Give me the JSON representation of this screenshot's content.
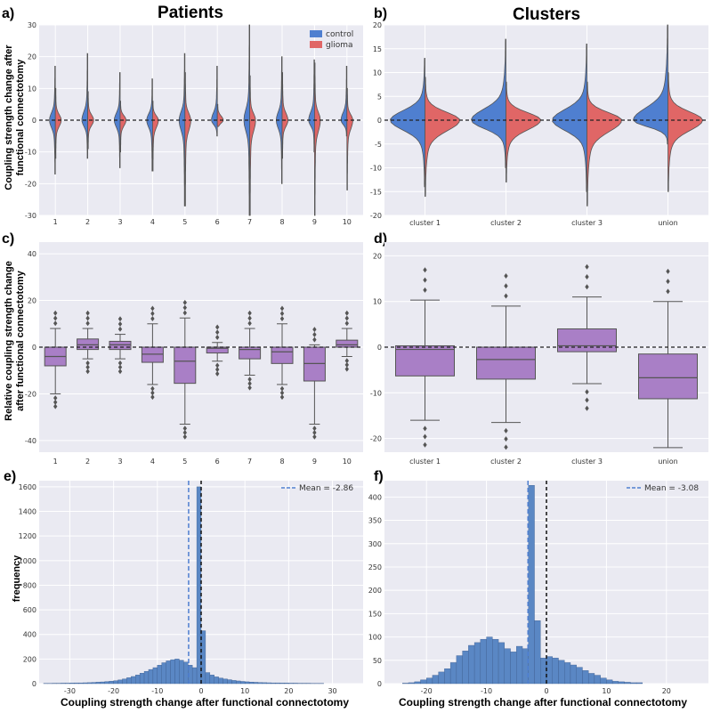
{
  "titles": {
    "patients": "Patients",
    "clusters": "Clusters"
  },
  "colors": {
    "control": "#4f7fd0",
    "glioma": "#e06666",
    "box": "#a97fc6",
    "hist": "#5a87c4",
    "mean_line": "#4f7fd0",
    "edge": "#555555"
  },
  "chart_data": [
    {
      "panel": "a)",
      "type": "violin",
      "title": "Patients",
      "ylabel": "Coupling strength change after functional connectotomy",
      "categories": [
        "1",
        "2",
        "3",
        "4",
        "5",
        "6",
        "7",
        "8",
        "9",
        "10"
      ],
      "ylim": [
        -30,
        30
      ],
      "yticks": [
        -30,
        -20,
        -10,
        0,
        10,
        20,
        30
      ],
      "legend": [
        "control",
        "glioma"
      ],
      "legend_position": "top-right",
      "series": [
        {
          "name": "control",
          "ymin": [
            -17,
            -12,
            -15,
            -16,
            -27,
            -5,
            -30,
            -20,
            -10,
            -5
          ],
          "ymax": [
            17,
            21,
            15,
            13,
            21,
            17,
            30,
            20,
            19,
            17
          ]
        },
        {
          "name": "glioma",
          "ymin": [
            -12,
            -9,
            -10,
            -16,
            -27,
            -2,
            -30,
            -12,
            -30,
            -22
          ],
          "ymax": [
            10,
            9,
            6,
            6,
            15,
            5,
            14,
            15,
            18,
            10
          ]
        }
      ]
    },
    {
      "panel": "b)",
      "type": "violin",
      "title": "Clusters",
      "categories": [
        "cluster 1",
        "cluster 2",
        "cluster 3",
        "union"
      ],
      "ylim": [
        -20,
        20
      ],
      "yticks": [
        -20,
        -15,
        -10,
        -5,
        0,
        5,
        10,
        15,
        20
      ],
      "series": [
        {
          "name": "control",
          "ymin": [
            -14,
            -10,
            -15,
            -5
          ],
          "ymax": [
            13,
            17,
            16,
            20
          ]
        },
        {
          "name": "glioma",
          "ymin": [
            -16,
            -13,
            -18,
            -15
          ],
          "ymax": [
            9,
            8,
            8,
            10
          ]
        }
      ]
    },
    {
      "panel": "c)",
      "type": "box",
      "ylabel": "Relative coupling strength change after functional connectotomy",
      "categories": [
        "1",
        "2",
        "3",
        "4",
        "5",
        "6",
        "7",
        "8",
        "9",
        "10"
      ],
      "ylim": [
        -45,
        45
      ],
      "yticks": [
        -40,
        -20,
        0,
        20,
        40
      ],
      "boxes": [
        {
          "q1": -8,
          "median": -4,
          "q3": 0,
          "wlo": -20,
          "whi": 8
        },
        {
          "q1": -1,
          "median": 1,
          "q3": 3.5,
          "wlo": -5,
          "whi": 8
        },
        {
          "q1": -1,
          "median": 1,
          "q3": 2.5,
          "wlo": -5,
          "whi": 5.5
        },
        {
          "q1": -6.5,
          "median": -3,
          "q3": 0,
          "wlo": -16,
          "whi": 10
        },
        {
          "q1": -15.5,
          "median": -6,
          "q3": 0,
          "wlo": -33,
          "whi": 12.5
        },
        {
          "q1": -2.5,
          "median": -0.5,
          "q3": 0,
          "wlo": -6,
          "whi": 2
        },
        {
          "q1": -5,
          "median": -1,
          "q3": 0,
          "wlo": -12,
          "whi": 8
        },
        {
          "q1": -7,
          "median": -2,
          "q3": 0,
          "wlo": -16,
          "whi": 10
        },
        {
          "q1": -14.5,
          "median": -7,
          "q3": 0,
          "wlo": -33,
          "whi": 1
        },
        {
          "q1": 0,
          "median": 1,
          "q3": 3,
          "wlo": -4,
          "whi": 8
        }
      ]
    },
    {
      "panel": "d)",
      "type": "box",
      "categories": [
        "cluster 1",
        "cluster 2",
        "cluster 3",
        "union"
      ],
      "ylim": [
        -23,
        23
      ],
      "yticks": [
        -20,
        -10,
        0,
        10,
        20
      ],
      "boxes": [
        {
          "q1": -6.3,
          "median": -0.5,
          "q3": 0.3,
          "wlo": -16,
          "whi": 10.3
        },
        {
          "q1": -7,
          "median": -2.7,
          "q3": 0,
          "wlo": -16.5,
          "whi": 9
        },
        {
          "q1": -1,
          "median": 0.3,
          "q3": 4,
          "wlo": -8,
          "whi": 11
        },
        {
          "q1": -11.3,
          "median": -6.7,
          "q3": -1.5,
          "wlo": -22,
          "whi": 10
        }
      ]
    },
    {
      "panel": "e)",
      "type": "histogram",
      "xlabel": "Coupling strength change after functional connectotomy",
      "ylabel": "frequency",
      "xlim": [
        -37,
        37
      ],
      "ylim": [
        0,
        1650
      ],
      "xticks": [
        -30,
        -20,
        -10,
        0,
        10,
        20,
        30
      ],
      "yticks": [
        0,
        200,
        400,
        600,
        800,
        1000,
        1200,
        1400,
        1600
      ],
      "mean": -2.86,
      "mean_label": "Mean = -2.86",
      "bin_edges_start": -36,
      "bin_width": 1,
      "counts": [
        2,
        2,
        3,
        3,
        4,
        4,
        5,
        6,
        6,
        7,
        8,
        10,
        12,
        14,
        17,
        20,
        24,
        30,
        38,
        48,
        58,
        70,
        85,
        100,
        115,
        130,
        150,
        170,
        185,
        195,
        200,
        190,
        175,
        150,
        130,
        1600,
        430,
        90,
        70,
        55,
        45,
        38,
        32,
        26,
        22,
        18,
        15,
        13,
        11,
        9,
        8,
        7,
        6,
        6,
        5,
        5,
        4,
        4,
        3,
        3,
        3,
        2,
        2,
        2
      ]
    },
    {
      "panel": "f)",
      "type": "histogram",
      "xlabel": "Coupling strength change after functional connectotomy",
      "xlim": [
        -27,
        27
      ],
      "ylim": [
        0,
        435
      ],
      "xticks": [
        -20,
        -10,
        0,
        10,
        20
      ],
      "yticks": [
        0,
        50,
        100,
        150,
        200,
        250,
        300,
        350,
        400
      ],
      "mean": -3.08,
      "mean_label": "Mean = -3.08",
      "bin_edges_start": -24,
      "bin_width": 1,
      "counts": [
        1,
        2,
        4,
        8,
        12,
        18,
        25,
        32,
        45,
        60,
        70,
        82,
        88,
        95,
        100,
        95,
        88,
        75,
        68,
        80,
        75,
        425,
        135,
        55,
        58,
        55,
        50,
        45,
        40,
        35,
        28,
        22,
        18,
        12,
        8,
        5,
        4,
        3,
        2,
        2
      ]
    }
  ]
}
